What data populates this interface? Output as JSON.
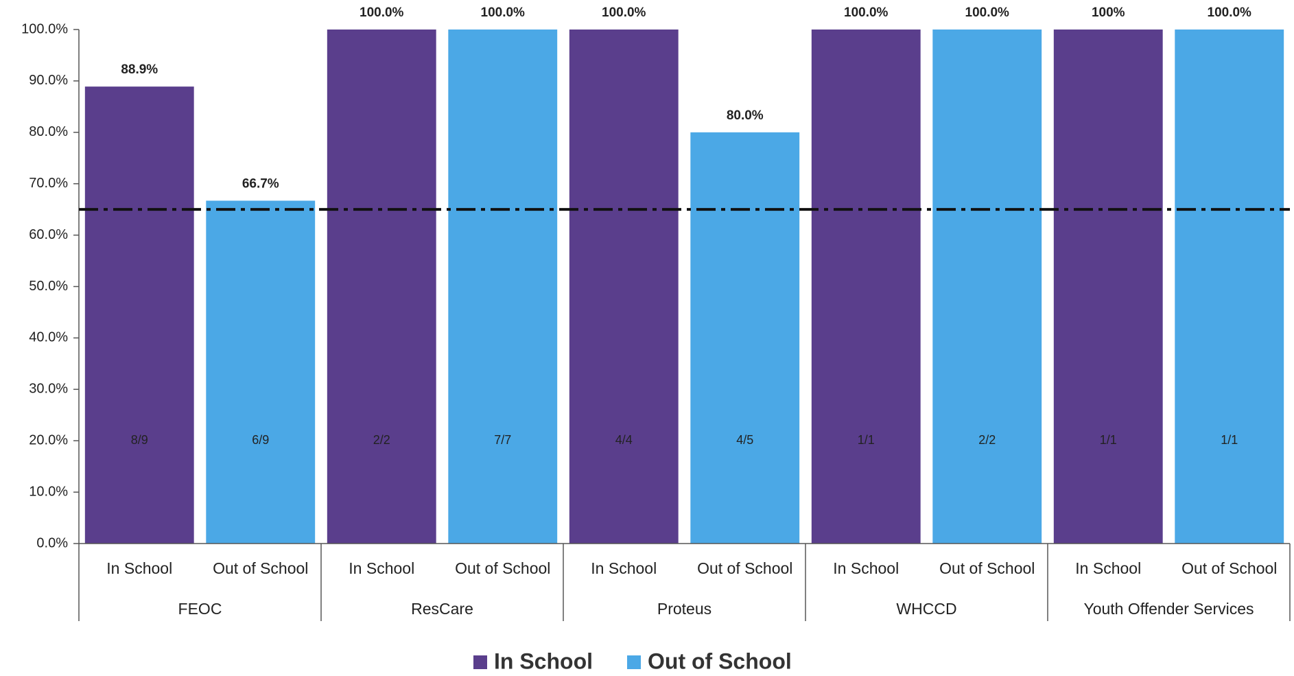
{
  "chart_data": {
    "type": "bar",
    "categories": [
      "FEOC",
      "ResCare",
      "Proteus",
      "WHCCD",
      "Youth Offender Services"
    ],
    "series": [
      {
        "name": "In School",
        "color": "#5a3e8c",
        "values": [
          88.9,
          100,
          100,
          100,
          100
        ],
        "value_labels": [
          "88.9%",
          "100.0%",
          "100.0%",
          "100.0%",
          "100%"
        ],
        "inner_labels": [
          "8/9",
          "2/2",
          "4/4",
          "1/1",
          "1/1"
        ]
      },
      {
        "name": "Out of School",
        "color": "#4ba8e6",
        "values": [
          66.7,
          100,
          80,
          100,
          100
        ],
        "value_labels": [
          "66.7%",
          "100.0%",
          "80.0%",
          "100.0%",
          "100.0%"
        ],
        "inner_labels": [
          "6/9",
          "7/7",
          "4/5",
          "2/2",
          "1/1"
        ]
      }
    ],
    "reference_line": 65,
    "ylim": [
      0,
      100
    ],
    "yticks": [
      {
        "value": 0,
        "label": "0.0%"
      },
      {
        "value": 10,
        "label": "10.0%"
      },
      {
        "value": 20,
        "label": "20.0%"
      },
      {
        "value": 30,
        "label": "30.0%"
      },
      {
        "value": 40,
        "label": "40.0%"
      },
      {
        "value": 50,
        "label": "50.0%"
      },
      {
        "value": 60,
        "label": "60.0%"
      },
      {
        "value": 70,
        "label": "70.0%"
      },
      {
        "value": 80,
        "label": "80.0%"
      },
      {
        "value": 90,
        "label": "90.0%"
      },
      {
        "value": 100,
        "label": "100.0%"
      }
    ],
    "legend": "bottom"
  }
}
